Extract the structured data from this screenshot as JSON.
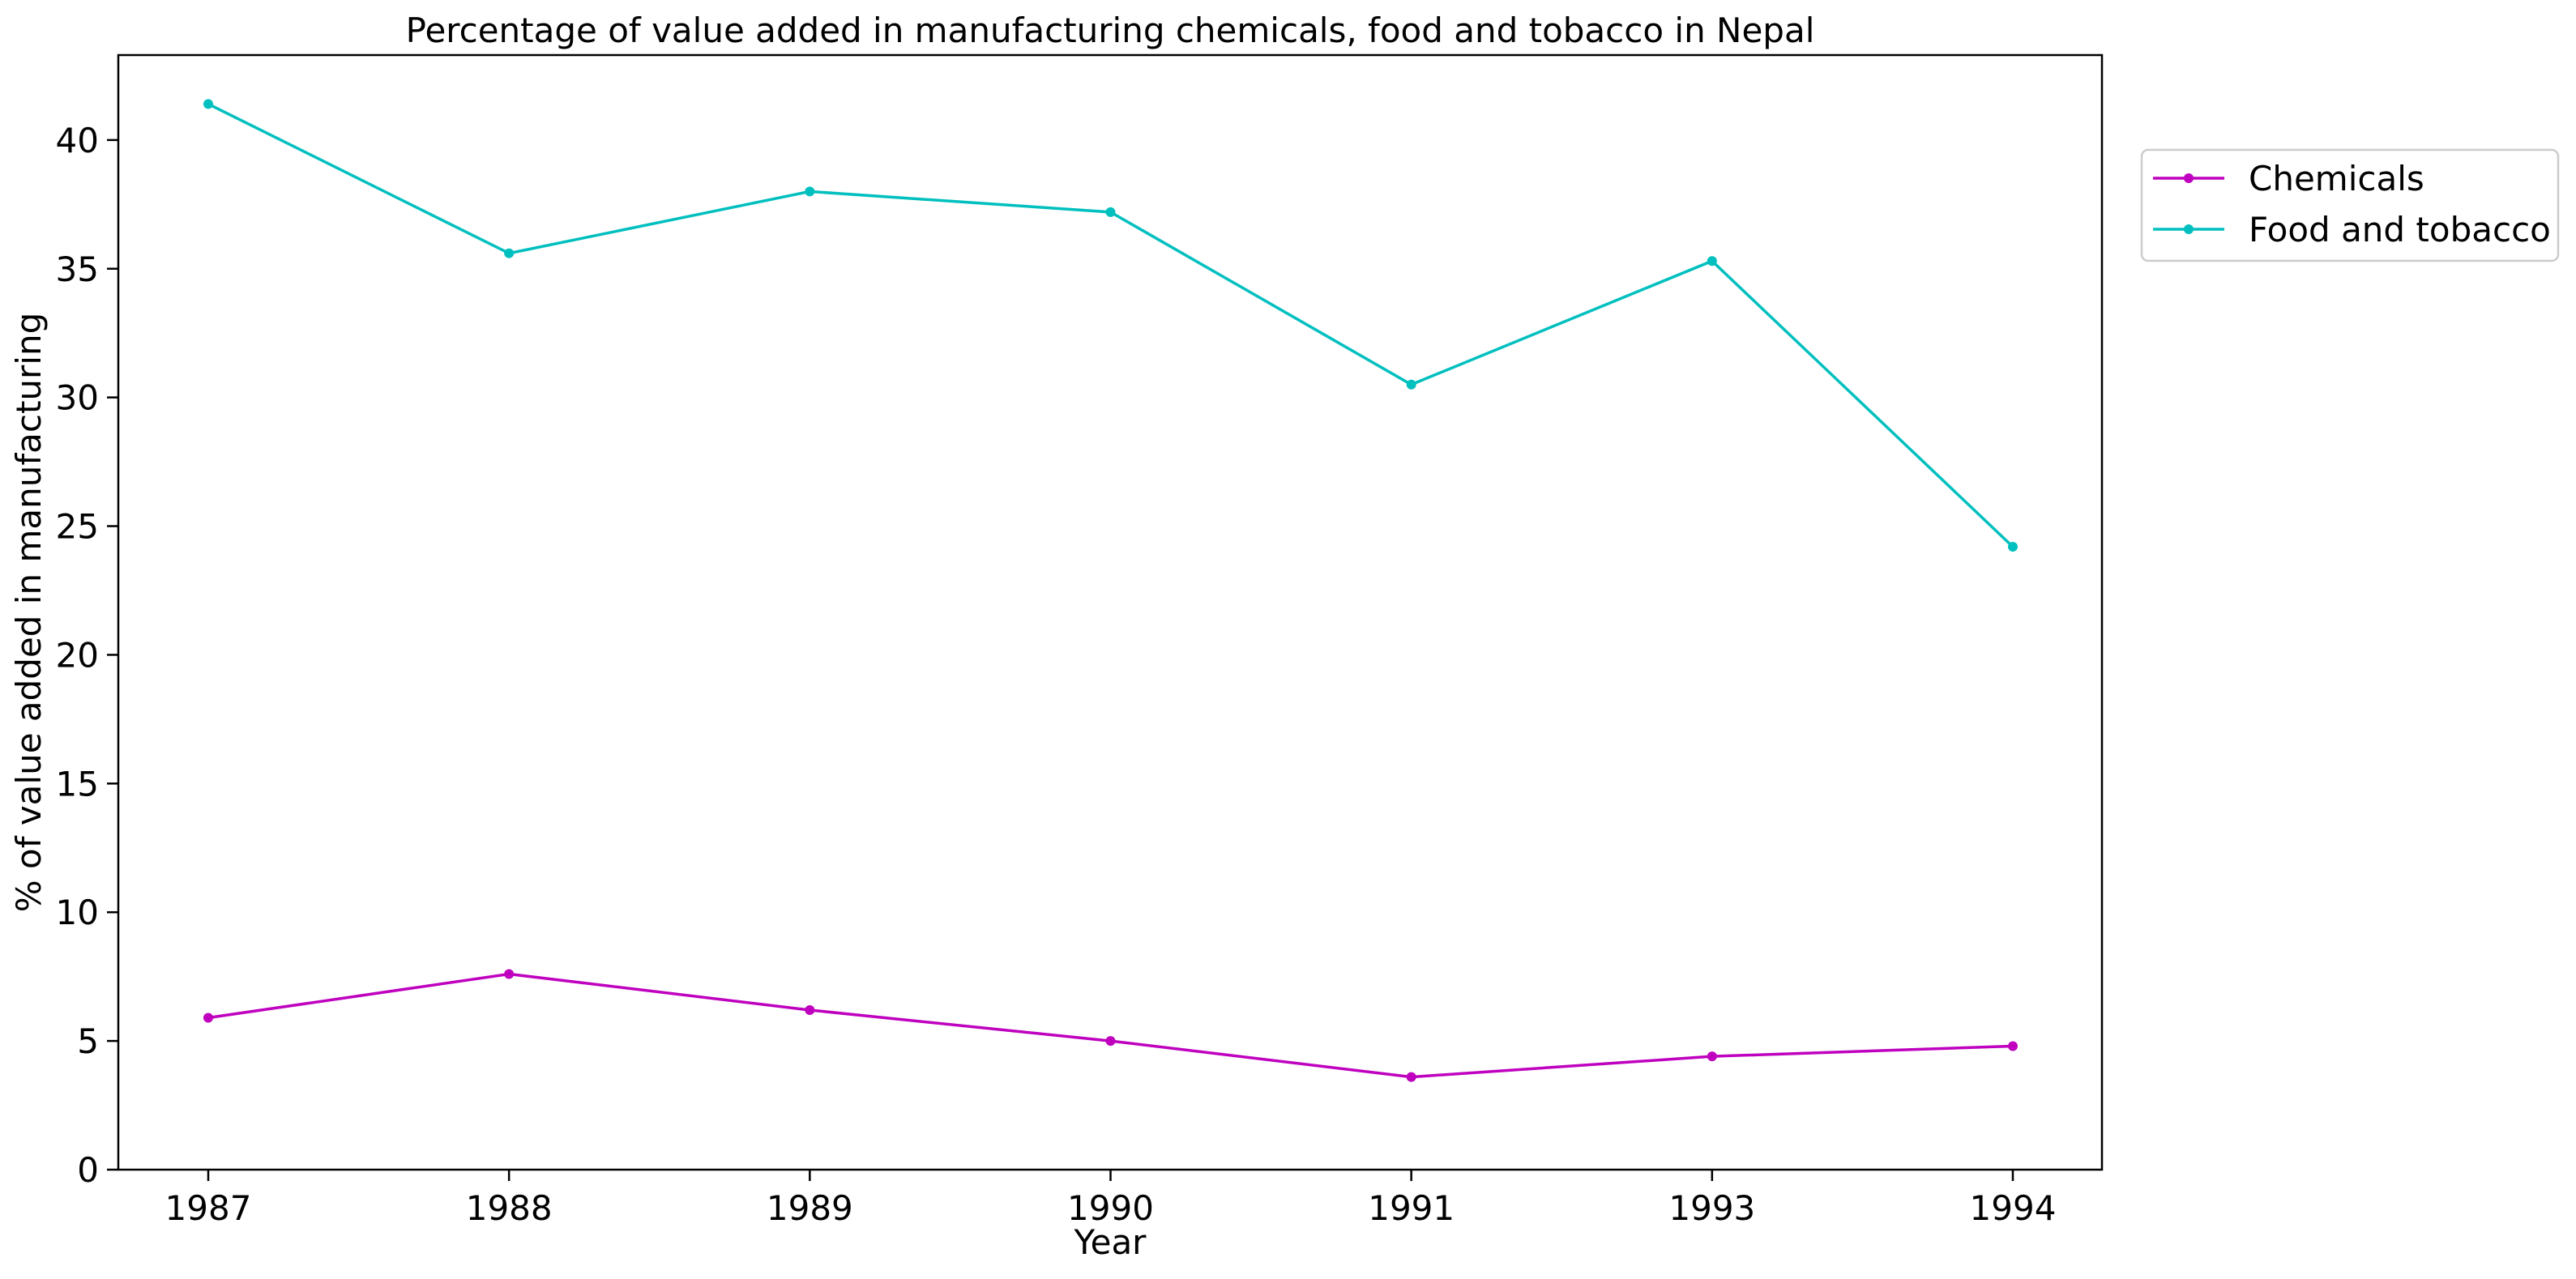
{
  "chart_data": {
    "type": "line",
    "title": "Percentage of value added in manufacturing chemicals, food and tobacco in Nepal",
    "xlabel": "Year",
    "ylabel": "% of value added in manufacturing",
    "categories": [
      "1987",
      "1988",
      "1989",
      "1990",
      "1991",
      "1993",
      "1994"
    ],
    "y_ticks": [
      0,
      5,
      10,
      15,
      20,
      25,
      30,
      35,
      40
    ],
    "ylim": [
      0,
      43.3
    ],
    "grid": false,
    "legend_position": "outside-right-top",
    "series": [
      {
        "name": "Chemicals",
        "color": "#bf00bf",
        "marker": "circle",
        "values": [
          5.9,
          7.6,
          6.2,
          5.0,
          3.6,
          4.4,
          4.8
        ]
      },
      {
        "name": "Food and tobacco",
        "color": "#00bfbf",
        "marker": "circle",
        "values": [
          41.4,
          35.6,
          38.0,
          37.2,
          30.5,
          35.3,
          24.2
        ]
      }
    ]
  }
}
